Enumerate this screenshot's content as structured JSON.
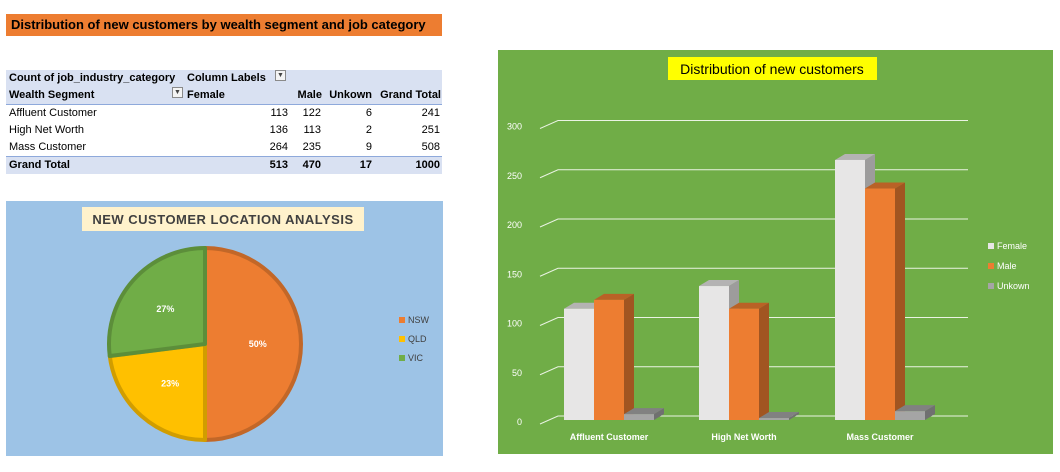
{
  "banner": {
    "title": "Distribution of new customers by wealth segment and job category"
  },
  "pivot": {
    "header_value_field": "Count of job_industry_category",
    "header_column_labels": "Column Labels",
    "row_field": "Wealth Segment",
    "columns": [
      "Female",
      "Male",
      "Unkown",
      "Grand Total"
    ],
    "rows": [
      {
        "label": "Affluent Customer",
        "values": [
          "113",
          "122",
          "6",
          "241"
        ]
      },
      {
        "label": "High Net Worth",
        "values": [
          "136",
          "113",
          "2",
          "251"
        ]
      },
      {
        "label": "Mass Customer",
        "values": [
          "264",
          "235",
          "9",
          "508"
        ]
      }
    ],
    "total": {
      "label": "Grand Total",
      "values": [
        "513",
        "470",
        "17",
        "1000"
      ]
    }
  },
  "chart_data": [
    {
      "type": "pie",
      "title": "NEW CUSTOMER LOCATION ANALYSIS",
      "categories": [
        "NSW",
        "QLD",
        "VIC"
      ],
      "values": [
        50,
        23,
        27
      ],
      "labels": [
        "50%",
        "23%",
        "27%"
      ],
      "colors": [
        "#ED7D31",
        "#FFC000",
        "#70AD47"
      ],
      "background": "#9DC3E6",
      "legend_position": "right"
    },
    {
      "type": "bar",
      "title": "Distribution of new customers",
      "categories": [
        "Affluent Customer",
        "High Net Worth",
        "Mass Customer"
      ],
      "series": [
        {
          "name": "Female",
          "values": [
            113,
            136,
            264
          ],
          "color": "#E7E6E6"
        },
        {
          "name": "Male",
          "values": [
            122,
            113,
            235
          ],
          "color": "#ED7D31"
        },
        {
          "name": "Unkown",
          "values": [
            6,
            2,
            9
          ],
          "color": "#A5A5A5"
        }
      ],
      "ylim": [
        0,
        300
      ],
      "yticks": [
        "0",
        "50",
        "100",
        "150",
        "200",
        "250",
        "300"
      ],
      "grid": true,
      "background": "#70AD47",
      "title_background": "#FFFF00",
      "legend_position": "right"
    }
  ]
}
